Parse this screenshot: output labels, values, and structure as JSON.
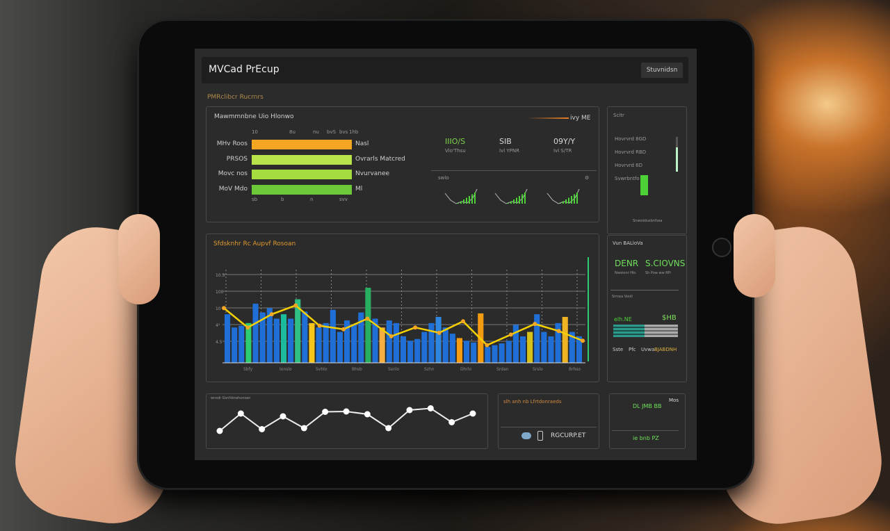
{
  "header": {
    "title": "MVCad PrEcup",
    "button": "Stuvnidsn"
  },
  "section_label": "PMRclibcr Rucrnrs",
  "panel1": {
    "title": "Mawmmnbne Uio Hlonwo",
    "corner": "ivy ME",
    "top_ticks": [
      "10",
      "8u",
      "nu",
      "bvS",
      "bvs",
      "1hb"
    ],
    "bottom_ticks": [
      "sb",
      "b",
      "n",
      "svv"
    ],
    "bars": [
      {
        "label": "MHv Roos",
        "value_label": "Nasl",
        "color": "#f5a623",
        "fill": 100
      },
      {
        "label": "PRSOS",
        "value_label": "Ovrarls Matcred",
        "color": "#b8e34a",
        "fill": 100
      },
      {
        "label": "Movc nos",
        "value_label": "Nvurvanee",
        "color": "#a5dc3f",
        "fill": 100
      },
      {
        "label": "MoV Mdo",
        "value_label": "Ml",
        "color": "#6cc93a",
        "fill": 100
      }
    ],
    "kpis": [
      {
        "value": "IIIO/S",
        "sub": "Vlo'Thsu",
        "color": "#7fd44a"
      },
      {
        "value": "SIB",
        "sub": "Ivl YPNR",
        "color": "#d8d8d8"
      },
      {
        "value": "09Y/Y",
        "sub": "Ivl S/TR",
        "color": "#d8d8d8"
      }
    ],
    "spark_label": "swlo"
  },
  "side1": {
    "title": "Scitr",
    "rows": [
      "Hovrvrd 8GD",
      "Hovrvrd RBD",
      "Hovrvrd 6D",
      "Svwrbntfo"
    ],
    "footer": "Snwoddusbnfsea",
    "slider_level": 0.7
  },
  "main_chart": {
    "title": "Sfdsknhr Rc Aupvf Rosoan",
    "y_ticks": [
      "10.5",
      "100",
      "10",
      "4¹",
      "4.5"
    ],
    "x_ticks": [
      "Sbfy",
      "Ionslo",
      "Svhlo",
      "Bhsb",
      "Ssnlo",
      "Szhn",
      "Dhrlo",
      "Srdan",
      "Srslo",
      "Brhso"
    ],
    "bars": [
      55,
      40,
      42,
      45,
      67,
      57,
      62,
      50,
      55,
      50,
      72,
      58,
      45,
      40,
      45,
      60,
      35,
      48,
      43,
      57,
      85,
      50,
      40,
      48,
      45,
      30,
      25,
      27,
      35,
      45,
      52,
      40,
      33,
      28,
      25,
      23,
      56,
      18,
      20,
      22,
      25,
      43,
      30,
      35,
      55,
      35,
      30,
      45,
      52,
      35,
      30
    ],
    "bar_colors": {
      "3": "#2ecc71",
      "8": "#1abc9c",
      "10": "#2fbf85",
      "12": "#f5c518",
      "20": "#27ae60",
      "22": "#f5b041",
      "30": "#2e86de",
      "33": "#f39c12",
      "36": "#f39c12",
      "43": "#d4c21a",
      "48": "#f0b323"
    },
    "line": [
      62,
      40,
      55,
      65,
      42,
      38,
      50,
      30,
      40,
      34,
      47,
      20,
      32,
      44,
      36,
      25
    ],
    "colors": {
      "bar": "#1f6fd6",
      "line": "#f5d000"
    }
  },
  "side2": {
    "title": "Vun BALloVa",
    "kpi1": "DENR",
    "kpi2": "S.CIOVNS",
    "sub1": "Nwstonr Hlo",
    "sub2": "Sh Pow ww RFr",
    "row_label": "Srmea Vonll",
    "green_val": "elh.NE",
    "green_val2": "$HB",
    "footer": [
      "Sste",
      "Pfc",
      "Uvwa"
    ],
    "footer_hi": "BJABDNH"
  },
  "line_panel": {
    "label": "wnsdr Gsnhbnahunsan",
    "values": [
      20,
      70,
      25,
      62,
      28,
      75,
      76,
      68,
      28,
      80,
      85,
      45,
      70
    ]
  },
  "panel_b2": {
    "title": "slh anh nb Lfrtdonraeds",
    "footer": "RGCURP.ET"
  },
  "panel_b3": {
    "corner": "Mos",
    "val": "DL JMB BB",
    "val2": "ie bnb PZ"
  }
}
